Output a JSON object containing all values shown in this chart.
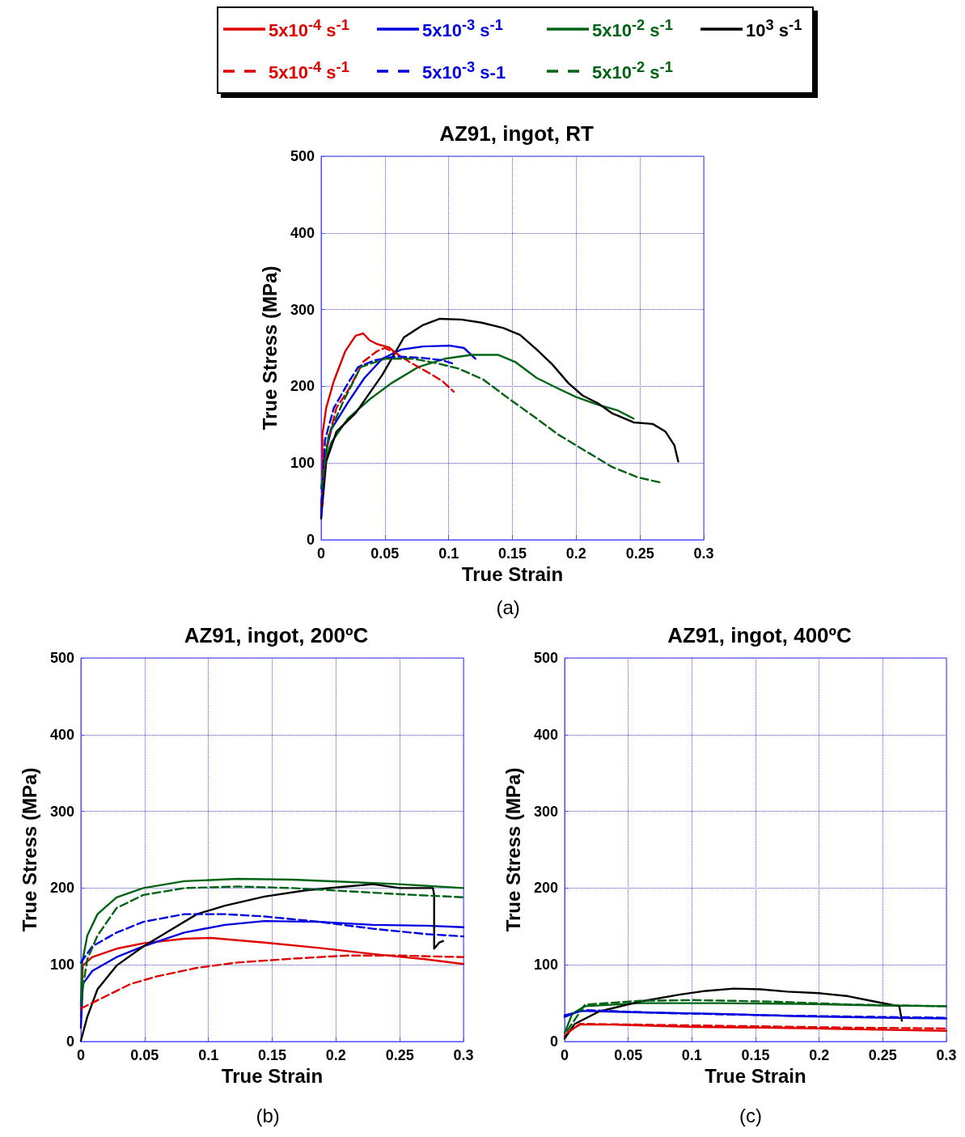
{
  "chart_data": [
    {
      "type": "line",
      "title": "AZ91, ingot, RT",
      "xlabel": "True Strain",
      "ylabel": "True Stress (MPa)",
      "annotations": [
        "(a)"
      ],
      "xlim": [
        0,
        0.3
      ],
      "ylim": [
        0,
        500
      ],
      "xticks": [
        0,
        0.05,
        0.1,
        0.15,
        0.2,
        0.25,
        0.3
      ],
      "yticks": [
        0,
        100,
        200,
        300,
        400,
        500
      ],
      "grid": true,
      "legend": "top",
      "series": [
        {
          "name": "5x10$^{-4}$ s$^{-1}$",
          "color": "#e00000",
          "x": [
            0.001,
            0.001,
            0.004,
            0.01,
            0.019,
            0.027,
            0.033,
            0.038,
            0.044,
            0.053,
            0.059
          ],
          "values": [
            46,
            137,
            172,
            207,
            246,
            266,
            269,
            260,
            255,
            251,
            243
          ]
        },
        {
          "name": "5x10$^{-3}$ s$^{-1}$",
          "color": "#0000e0",
          "x": [
            0,
            0.002,
            0.008,
            0.021,
            0.034,
            0.048,
            0.063,
            0.08,
            0.101,
            0.112,
            0.121
          ],
          "values": [
            28,
            102,
            144,
            179,
            211,
            236,
            248,
            252,
            253,
            250,
            236
          ]
        },
        {
          "name": "5x10$^{-2}$ s$^{-1}$",
          "color": "#006414",
          "x": [
            0,
            0.003,
            0.008,
            0.021,
            0.038,
            0.055,
            0.076,
            0.097,
            0.118,
            0.139,
            0.152,
            0.169,
            0.186,
            0.2,
            0.217,
            0.232,
            0.245
          ],
          "values": [
            39,
            102,
            127,
            158,
            183,
            204,
            225,
            236,
            241,
            241,
            232,
            211,
            197,
            186,
            176,
            169,
            158
          ]
        },
        {
          "name": "10$^{3}$ s$^{-1}$",
          "color": "#000000",
          "x": [
            0,
            0.004,
            0.012,
            0.027,
            0.048,
            0.065,
            0.08,
            0.093,
            0.11,
            0.126,
            0.143,
            0.156,
            0.169,
            0.181,
            0.194,
            0.205,
            0.217,
            0.228,
            0.245,
            0.26,
            0.27,
            0.277,
            0.28
          ],
          "values": [
            28,
            102,
            141,
            165,
            215,
            264,
            280,
            288,
            287,
            283,
            276,
            267,
            248,
            229,
            204,
            188,
            178,
            165,
            153,
            151,
            141,
            123,
            102
          ]
        },
        {
          "name": "5x10$^{-4}$ s$^{-1}$",
          "color": "#e00000",
          "line_style": "dashed",
          "x": [
            0,
            0.004,
            0.012,
            0.022,
            0.033,
            0.044,
            0.05,
            0.059,
            0.069,
            0.084,
            0.095,
            0.104
          ],
          "values": [
            46,
            120,
            172,
            197,
            232,
            246,
            250,
            243,
            232,
            218,
            207,
            193
          ]
        },
        {
          "name": "5x10$^{-3}$ s-1",
          "color": "#0000e0",
          "line_style": "dashed",
          "x": [
            0,
            0.003,
            0.01,
            0.021,
            0.029,
            0.042,
            0.059,
            0.08,
            0.095,
            0.105
          ],
          "values": [
            32,
            130,
            172,
            204,
            225,
            234,
            239,
            237,
            234,
            229
          ]
        },
        {
          "name": "5x10$^{-2}$ s$^{-1}$",
          "color": "#006414",
          "line_style": "dashed",
          "x": [
            0,
            0.006,
            0.017,
            0.031,
            0.05,
            0.072,
            0.091,
            0.108,
            0.127,
            0.148,
            0.169,
            0.186,
            0.207,
            0.228,
            0.249,
            0.268
          ],
          "values": [
            67,
            137,
            179,
            225,
            236,
            236,
            230,
            223,
            209,
            183,
            158,
            137,
            116,
            95,
            81,
            74
          ]
        }
      ]
    },
    {
      "type": "line",
      "title": "AZ91, ingot, 200ºC",
      "xlabel": "True Strain",
      "ylabel": "True Stress (MPa)",
      "annotations": [
        "(b)"
      ],
      "xlim": [
        0,
        0.3
      ],
      "ylim": [
        0,
        500
      ],
      "xticks": [
        0,
        0.05,
        0.1,
        0.15,
        0.2,
        0.25,
        0.3
      ],
      "yticks": [
        0,
        100,
        200,
        300,
        400,
        500
      ],
      "grid": true,
      "series": [
        {
          "color": "#e00000",
          "x": [
            0,
            0.0015,
            0.009,
            0.028,
            0.049,
            0.081,
            0.102,
            0.144,
            0.187,
            0.229,
            0.271,
            0.3
          ],
          "values": [
            32,
            99,
            110,
            121,
            128,
            134,
            135,
            129,
            122,
            114,
            107,
            101
          ]
        },
        {
          "color": "#0000e0",
          "x": [
            0,
            0.0015,
            0.009,
            0.028,
            0.049,
            0.081,
            0.113,
            0.144,
            0.187,
            0.229,
            0.271,
            0.3
          ],
          "values": [
            18,
            75,
            92,
            110,
            124,
            142,
            152,
            157,
            156,
            152,
            151,
            149
          ]
        },
        {
          "color": "#006414",
          "x": [
            0,
            0.001,
            0.005,
            0.013,
            0.028,
            0.049,
            0.081,
            0.123,
            0.166,
            0.208,
            0.25,
            0.3
          ],
          "values": [
            47,
            103,
            138,
            166,
            188,
            200,
            209,
            212,
            211,
            208,
            205,
            200
          ]
        },
        {
          "color": "#000000",
          "x": [
            0,
            0.005,
            0.013,
            0.028,
            0.049,
            0.07,
            0.091,
            0.113,
            0.144,
            0.176,
            0.208,
            0.229,
            0.25,
            0.276,
            0.277,
            0.277,
            0.281,
            0.284
          ],
          "values": [
            1,
            32,
            68,
            99,
            124,
            145,
            166,
            177,
            189,
            197,
            202,
            205,
            200,
            200,
            191,
            121,
            129,
            131
          ]
        },
        {
          "color": "#e00000",
          "line_style": "dashed",
          "x": [
            0,
            0.017,
            0.039,
            0.06,
            0.091,
            0.123,
            0.166,
            0.208,
            0.25,
            0.3
          ],
          "values": [
            43,
            57,
            75,
            85,
            96,
            103,
            108,
            112,
            112,
            110
          ]
        },
        {
          "color": "#0000e0",
          "line_style": "dashed",
          "x": [
            0,
            0.009,
            0.028,
            0.049,
            0.081,
            0.113,
            0.144,
            0.187,
            0.229,
            0.271,
            0.3
          ],
          "values": [
            103,
            124,
            142,
            156,
            166,
            166,
            163,
            156,
            147,
            140,
            137
          ]
        },
        {
          "color": "#006414",
          "line_style": "dashed",
          "x": [
            0,
            0.005,
            0.013,
            0.028,
            0.049,
            0.081,
            0.123,
            0.166,
            0.208,
            0.25,
            0.3
          ],
          "values": [
            54,
            107,
            138,
            174,
            191,
            200,
            202,
            200,
            196,
            192,
            188
          ]
        }
      ]
    },
    {
      "type": "line",
      "title": "AZ91, ingot, 400ºC",
      "xlabel": "True Strain",
      "ylabel": "True Stress (MPa)",
      "annotations": [
        "(c)"
      ],
      "xlim": [
        0,
        0.3
      ],
      "ylim": [
        0,
        500
      ],
      "xticks": [
        0,
        0.05,
        0.1,
        0.15,
        0.2,
        0.25,
        0.3
      ],
      "yticks": [
        0,
        100,
        200,
        300,
        400,
        500
      ],
      "grid": true,
      "series": [
        {
          "color": "#e00000",
          "x": [
            0,
            0.004,
            0.012,
            0.038,
            0.101,
            0.164,
            0.228,
            0.3
          ],
          "values": [
            7,
            14,
            22,
            22,
            19,
            18,
            16,
            14
          ]
        },
        {
          "color": "#0000e0",
          "x": [
            0,
            0.012,
            0.059,
            0.122,
            0.185,
            0.249,
            0.3
          ],
          "values": [
            32,
            40,
            38,
            36,
            33,
            31,
            30
          ]
        },
        {
          "color": "#006414",
          "x": [
            0,
            0.006,
            0.016,
            0.059,
            0.122,
            0.185,
            0.249,
            0.3
          ],
          "values": [
            11,
            36,
            46,
            50,
            50,
            49,
            47,
            46
          ]
        },
        {
          "color": "#000000",
          "x": [
            0,
            0.008,
            0.027,
            0.059,
            0.09,
            0.111,
            0.133,
            0.154,
            0.175,
            0.2,
            0.223,
            0.244,
            0.263,
            0.265
          ],
          "values": [
            4,
            23,
            39,
            52,
            61,
            66,
            69,
            68,
            65,
            63,
            59,
            52,
            46,
            27
          ]
        },
        {
          "color": "#e00000",
          "line_style": "dashed",
          "x": [
            0.002,
            0.012,
            0.059,
            0.143,
            0.228,
            0.3
          ],
          "values": [
            11,
            23,
            22,
            20,
            18,
            17
          ]
        },
        {
          "color": "#0000e0",
          "line_style": "dashed",
          "x": [
            0,
            0.016,
            0.08,
            0.164,
            0.249,
            0.3
          ],
          "values": [
            34,
            41,
            37,
            34,
            32,
            31
          ]
        },
        {
          "color": "#006414",
          "line_style": "dashed",
          "x": [
            0.002,
            0.016,
            0.059,
            0.101,
            0.164,
            0.228,
            0.3
          ],
          "values": [
            14,
            48,
            53,
            54,
            52,
            48,
            46
          ]
        }
      ]
    }
  ]
}
